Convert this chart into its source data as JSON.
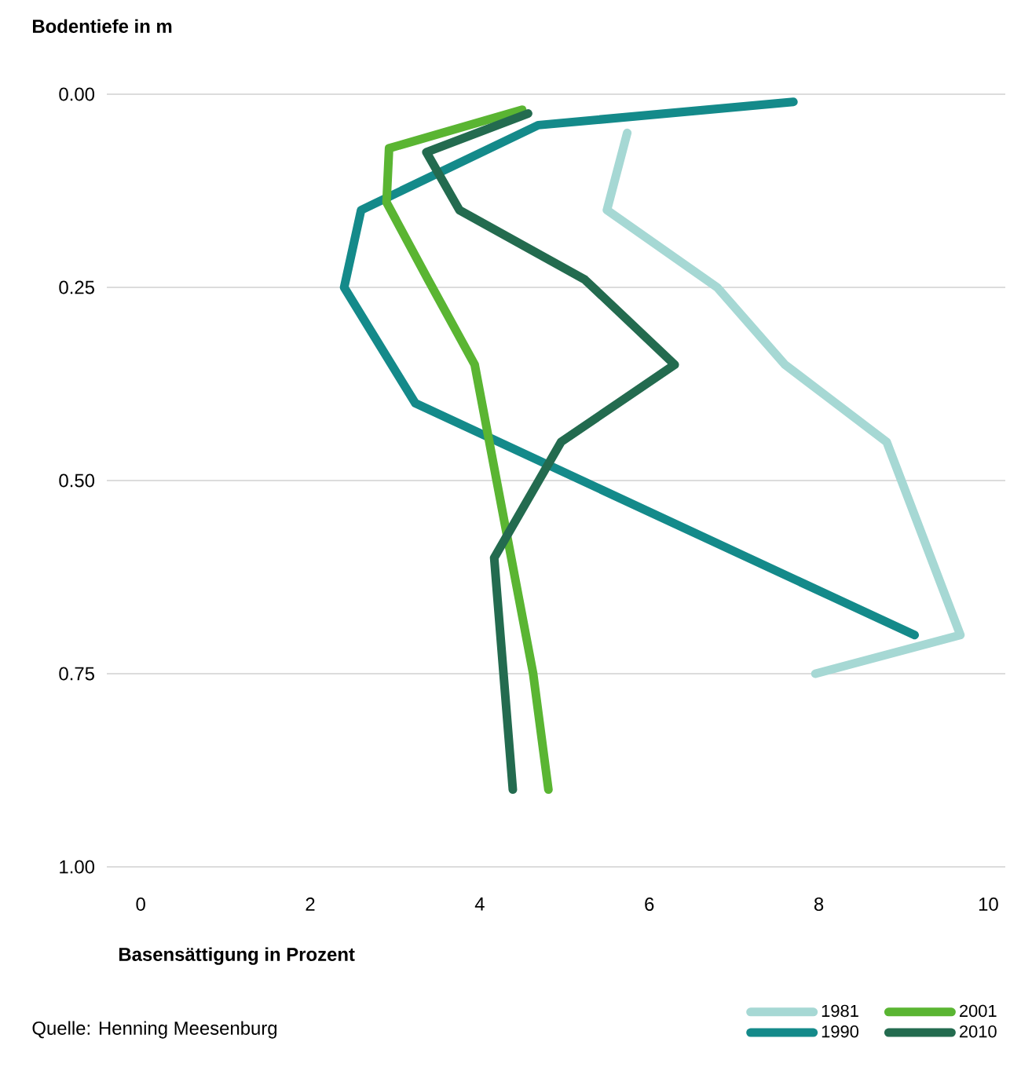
{
  "chart_data": {
    "type": "line",
    "ylabel": "Bodentiefe in m",
    "xlabel": "Basensättigung in Prozent",
    "annotations": [
      "Quelle: Henning Meesenburg"
    ],
    "xlim": [
      -0.4,
      10.2
    ],
    "xticks": [
      0,
      2,
      4,
      6,
      8,
      10
    ],
    "ylim": [
      1.0,
      0.0
    ],
    "yticks": [
      {
        "value": 0,
        "label": "0.00"
      },
      {
        "value": 0.25,
        "label": "0.25"
      },
      {
        "value": 0.5,
        "label": "0.50"
      },
      {
        "value": 0.75,
        "label": "0.75"
      },
      {
        "value": 1.0,
        "label": "1.00"
      }
    ],
    "grid": "y",
    "legend": "bottom right",
    "marker": "none",
    "line_style": "solid",
    "series": [
      {
        "name": "1981",
        "color": "#a6d8d4",
        "x": [
          5.74,
          5.5,
          6.8,
          7.6,
          8.8,
          9.67,
          7.96
        ],
        "values": [
          0.05,
          0.15,
          0.25,
          0.35,
          0.45,
          0.7,
          0.75
        ]
      },
      {
        "name": "1990",
        "color": "#148a8a",
        "x": [
          7.7,
          4.69,
          2.6,
          2.4,
          3.24,
          9.13
        ],
        "values": [
          0.01,
          0.04,
          0.15,
          0.25,
          0.4,
          0.7
        ]
      },
      {
        "name": "2001",
        "color": "#5ab532",
        "x": [
          4.5,
          2.93,
          2.9,
          3.39,
          3.94,
          4.63,
          4.81
        ],
        "values": [
          0.02,
          0.07,
          0.14,
          0.24,
          0.35,
          0.75,
          0.9
        ]
      },
      {
        "name": "2010",
        "color": "#236b4f",
        "x": [
          4.57,
          3.37,
          3.76,
          5.24,
          6.3,
          4.96,
          4.17,
          4.39
        ],
        "values": [
          0.025,
          0.075,
          0.15,
          0.24,
          0.35,
          0.45,
          0.6,
          0.9
        ]
      }
    ]
  }
}
